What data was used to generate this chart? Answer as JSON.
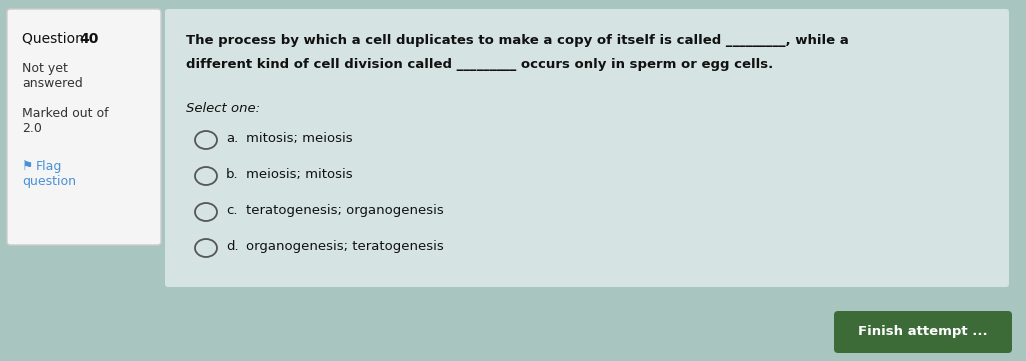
{
  "bg_outer": "#a8c5bf",
  "bg_left_panel": "#f5f5f5",
  "bg_right_panel": "#d5e4e2",
  "left_panel_border": "#cccccc",
  "flag_color": "#4a90d9",
  "question_text_line1": "The process by which a cell duplicates to make a copy of itself is called _________, while a",
  "question_text_line2": "different kind of cell division called _________ occurs only in sperm or egg cells.",
  "select_one": "Select one:",
  "options": [
    {
      "label": "a.",
      "text": "mitosis; meiosis"
    },
    {
      "label": "b.",
      "text": "meiosis; mitosis"
    },
    {
      "label": "c.",
      "text": "teratogenesis; organogenesis"
    },
    {
      "label": "d.",
      "text": "organogenesis; teratogenesis"
    }
  ],
  "circle_color": "#555555",
  "finish_button_text": "Finish attempt ...",
  "finish_button_bg": "#3d6b38",
  "finish_button_fg": "#ffffff",
  "text_color": "#333333",
  "font_size_body": 9.5,
  "font_size_options": 9.5,
  "font_size_question_header": 10
}
